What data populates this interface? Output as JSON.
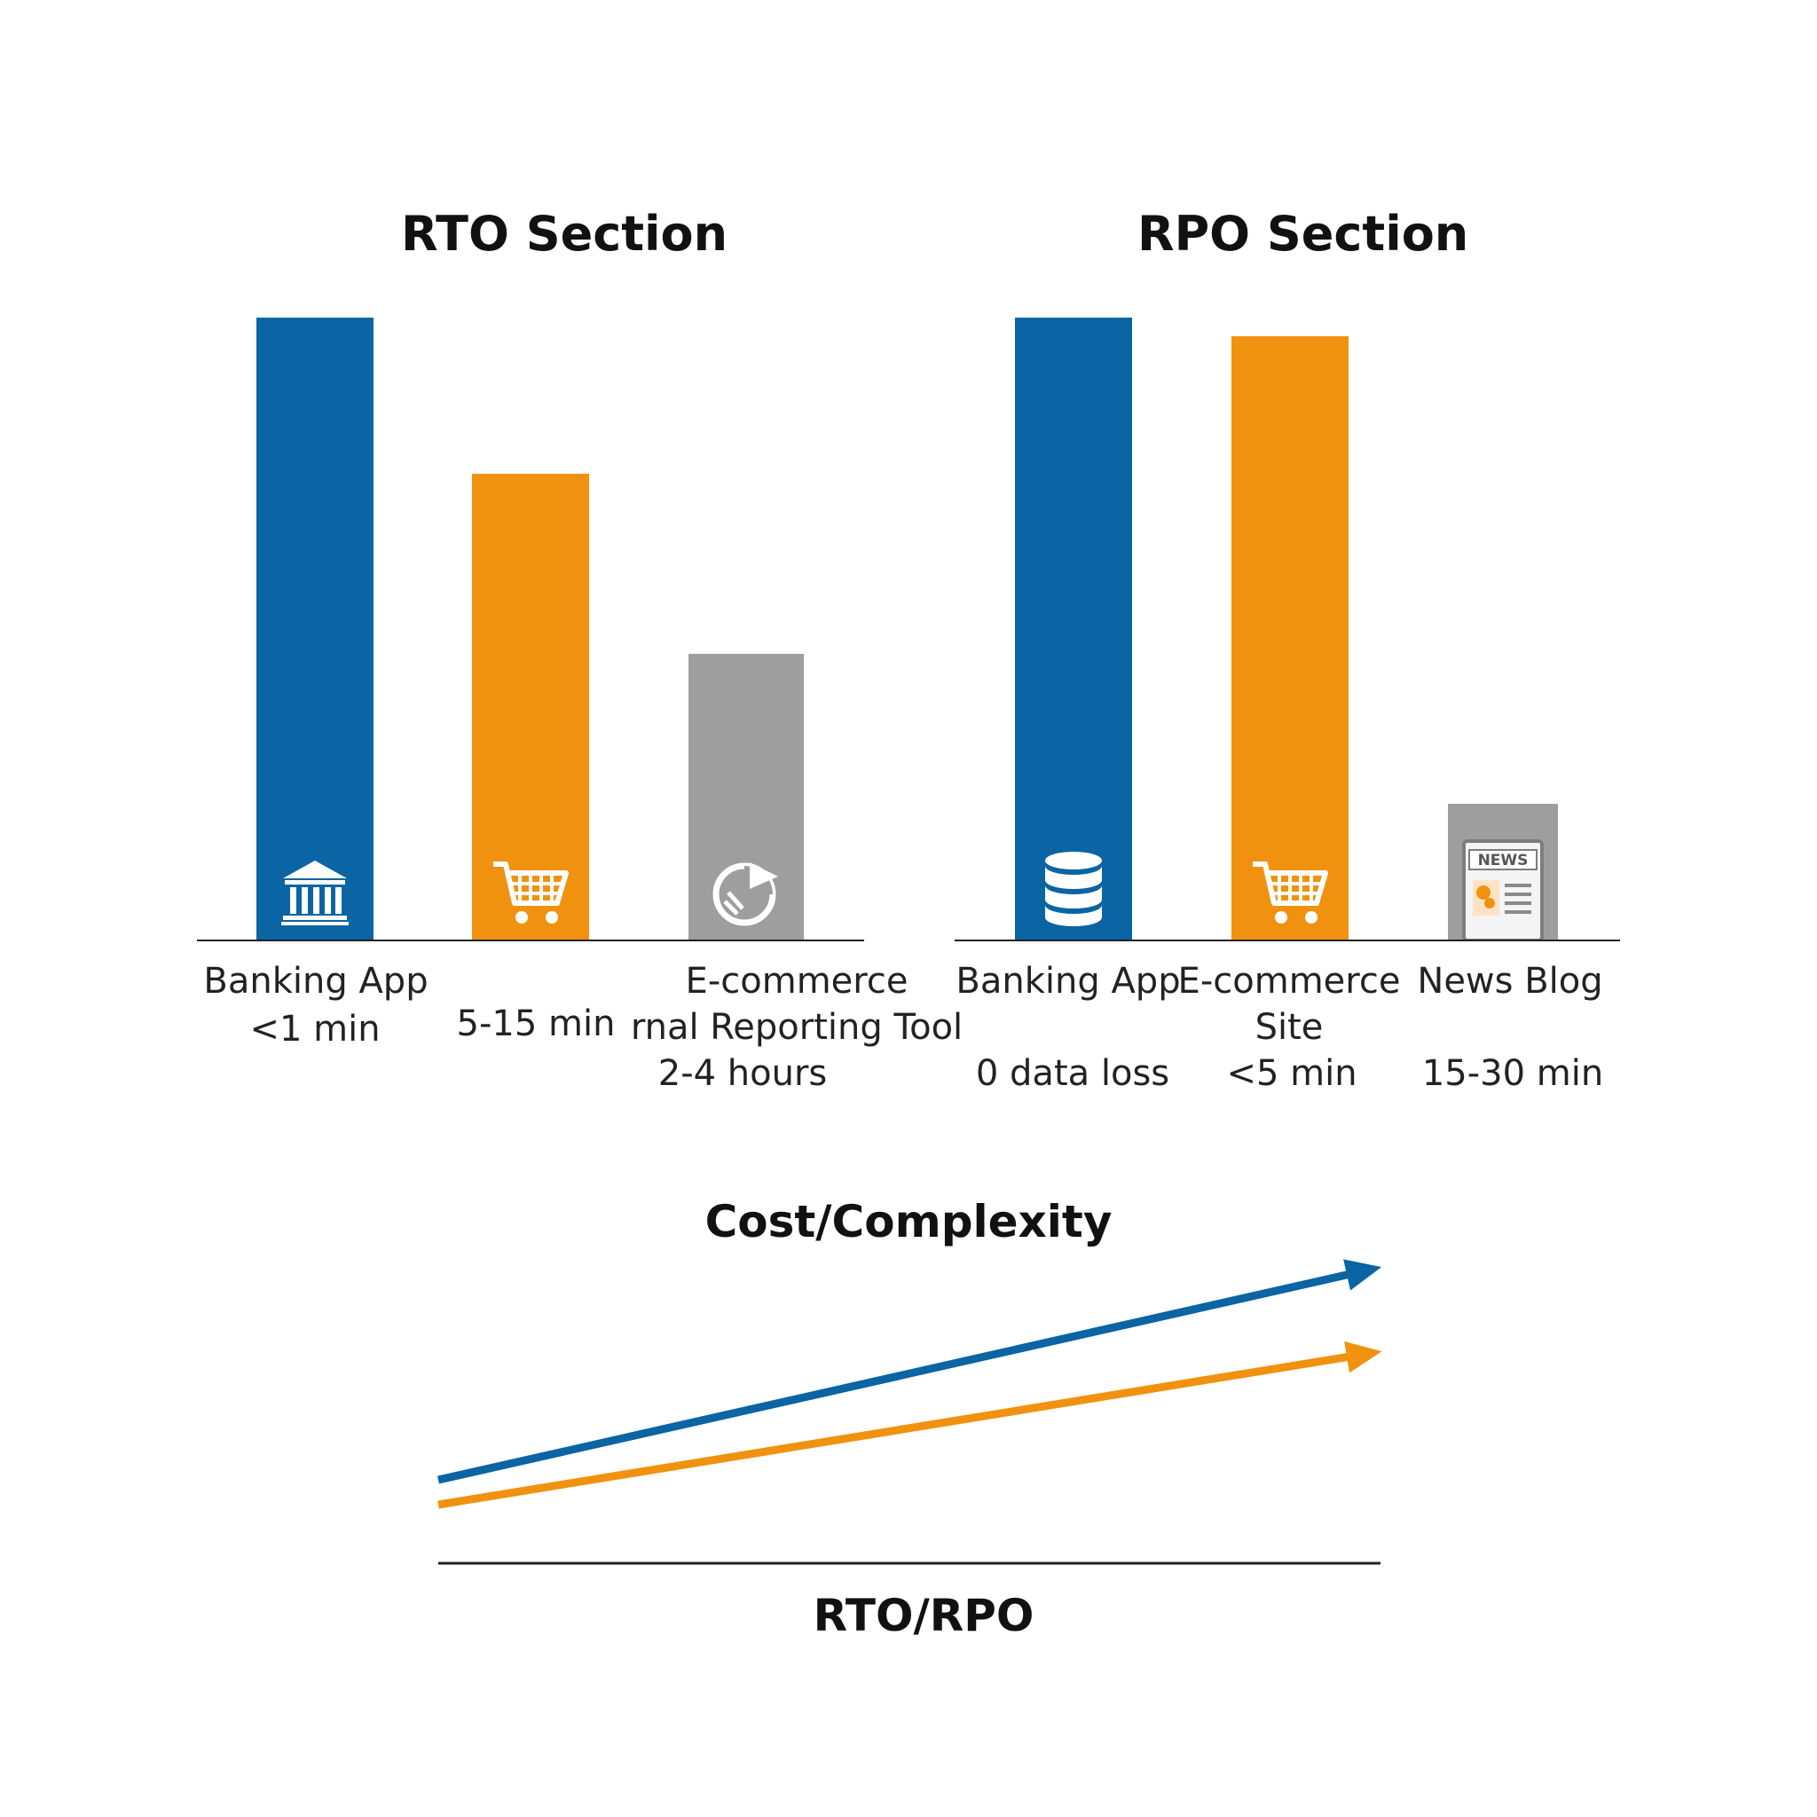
{
  "chart_data": [
    {
      "type": "bar",
      "title": "RTO Section",
      "categories": [
        "Banking App",
        "",
        "E-commerce\nrnal Reporting Tool"
      ],
      "values": [
        100,
        75,
        46
      ],
      "value_labels": [
        "<1 min",
        "5-15 min",
        "2-4 hours"
      ],
      "colors": [
        "#0B64A3",
        "#F0920F",
        "#9E9E9E"
      ],
      "icons": [
        "bank-icon",
        "cart-icon",
        "report-icon"
      ]
    },
    {
      "type": "bar",
      "title": "RPO Section",
      "categories": [
        "Banking App",
        "E-commerce\nSite",
        "News Blog"
      ],
      "values": [
        100,
        97,
        22
      ],
      "value_labels": [
        "0 data loss",
        "<5 min",
        "15-30 min"
      ],
      "colors": [
        "#0B64A3",
        "#F0920F",
        "#9E9E9E"
      ],
      "icons": [
        "database-icon",
        "cart-icon",
        "news-icon"
      ]
    },
    {
      "type": "line",
      "title": "Cost/Complexity",
      "xlabel": "RTO/RPO",
      "series": [
        {
          "values": [
            0,
            1
          ],
          "color": "#0B64A3"
        },
        {
          "values": [
            0,
            0.72
          ],
          "color": "#F0920F"
        }
      ]
    }
  ],
  "icon_text": {
    "news": "NEWS"
  }
}
